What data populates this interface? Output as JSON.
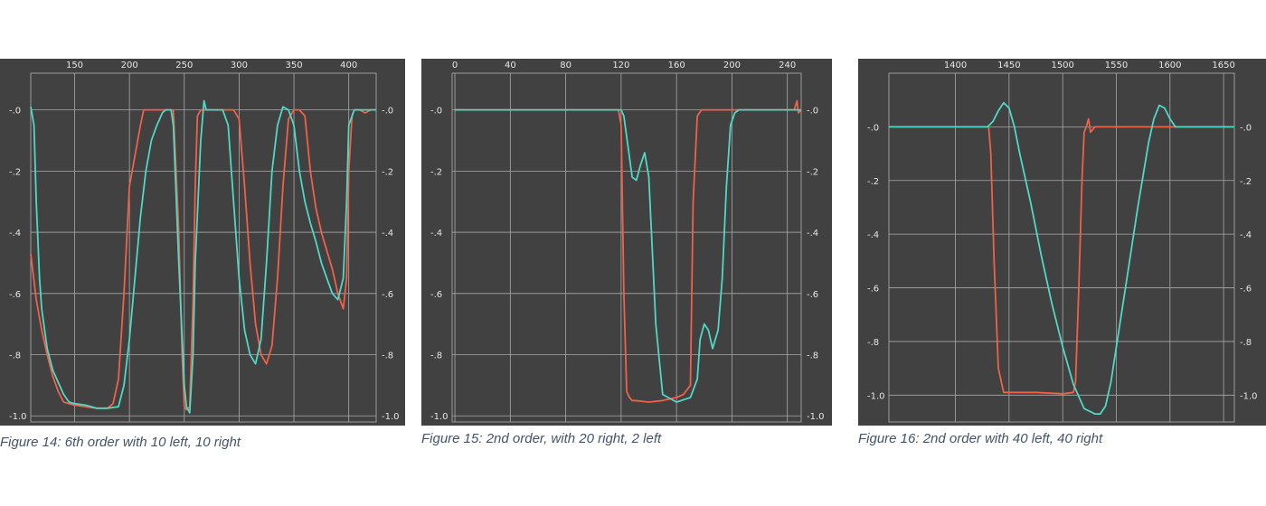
{
  "colors": {
    "background": "#414141",
    "grid": "#a9a9a9",
    "series_red": "#f0604a",
    "series_cyan": "#4fd8c4",
    "caption": "#44546a"
  },
  "figures": [
    {
      "caption": "Figure 14: 6th order with 10 left, 10 right"
    },
    {
      "caption": "Figure 15: 2nd order, with 20 right, 2 left"
    },
    {
      "caption": "Figure 16: 2nd order with 40 left, 40 right"
    }
  ],
  "chart_data": [
    {
      "type": "line",
      "title": "",
      "xlabel": "",
      "ylabel": "",
      "xlim": [
        110,
        425
      ],
      "ylim": [
        -1.02,
        0.12
      ],
      "x_ticks": [
        150,
        200,
        250,
        300,
        350,
        400
      ],
      "x_tick_labels": [
        "150",
        "200",
        "250",
        "300",
        "350",
        "400"
      ],
      "y_ticks": [
        0,
        -0.2,
        -0.4,
        -0.6,
        -0.8,
        -1.0
      ],
      "y_tick_labels": [
        "-.0",
        "-.2",
        "-.4",
        "-.6",
        "-.8",
        "-1.0"
      ],
      "grid": true,
      "series": [
        {
          "color": "#f0604a",
          "x": [
            110,
            115,
            120,
            125,
            130,
            135,
            140,
            145,
            150,
            160,
            170,
            180,
            185,
            190,
            195,
            200,
            205,
            210,
            213,
            215,
            220,
            230,
            240,
            245,
            248,
            250,
            252,
            255,
            258,
            260,
            262,
            265,
            270,
            280,
            290,
            295,
            300,
            305,
            310,
            315,
            320,
            325,
            330,
            335,
            340,
            345,
            350,
            355,
            360,
            365,
            370,
            375,
            380,
            385,
            390,
            395,
            398,
            400,
            403,
            405,
            410,
            415,
            420,
            425
          ],
          "y": [
            -0.47,
            -0.62,
            -0.72,
            -0.8,
            -0.87,
            -0.92,
            -0.955,
            -0.96,
            -0.965,
            -0.97,
            -0.975,
            -0.975,
            -0.96,
            -0.88,
            -0.6,
            -0.25,
            -0.15,
            -0.05,
            0.0,
            0.0,
            0.0,
            0.0,
            0.0,
            -0.4,
            -0.8,
            -0.97,
            -0.98,
            -0.97,
            -0.62,
            -0.25,
            -0.02,
            0.0,
            0.0,
            0.0,
            0.0,
            0.0,
            -0.03,
            -0.25,
            -0.5,
            -0.7,
            -0.8,
            -0.83,
            -0.77,
            -0.55,
            -0.25,
            -0.03,
            0.0,
            0.0,
            -0.02,
            -0.2,
            -0.32,
            -0.4,
            -0.46,
            -0.52,
            -0.6,
            -0.65,
            -0.55,
            -0.2,
            -0.02,
            0.0,
            0.0,
            -0.01,
            0.0,
            0.0
          ]
        },
        {
          "color": "#4fd8c4",
          "x": [
            110,
            113,
            115,
            118,
            120,
            125,
            130,
            135,
            140,
            145,
            150,
            160,
            170,
            180,
            190,
            195,
            200,
            205,
            210,
            215,
            220,
            225,
            230,
            233,
            235,
            238,
            240,
            245,
            250,
            252,
            255,
            258,
            260,
            265,
            268,
            270,
            275,
            280,
            285,
            290,
            295,
            300,
            305,
            310,
            315,
            320,
            325,
            330,
            335,
            340,
            345,
            350,
            355,
            360,
            365,
            370,
            375,
            380,
            385,
            390,
            395,
            398,
            400,
            405,
            410,
            415,
            420,
            425
          ],
          "y": [
            0.01,
            -0.05,
            -0.3,
            -0.55,
            -0.65,
            -0.78,
            -0.85,
            -0.89,
            -0.93,
            -0.955,
            -0.96,
            -0.965,
            -0.975,
            -0.975,
            -0.97,
            -0.9,
            -0.75,
            -0.55,
            -0.35,
            -0.2,
            -0.1,
            -0.05,
            -0.01,
            0.0,
            0.0,
            0.0,
            -0.05,
            -0.5,
            -0.9,
            -0.97,
            -0.99,
            -0.8,
            -0.5,
            -0.1,
            0.03,
            0.0,
            0.0,
            0.0,
            0.0,
            -0.05,
            -0.3,
            -0.55,
            -0.72,
            -0.8,
            -0.83,
            -0.75,
            -0.5,
            -0.2,
            -0.05,
            0.01,
            0.0,
            -0.05,
            -0.2,
            -0.3,
            -0.37,
            -0.43,
            -0.5,
            -0.55,
            -0.6,
            -0.62,
            -0.55,
            -0.3,
            -0.05,
            0.0,
            0.0,
            0.0,
            0.0,
            0.0
          ]
        }
      ]
    },
    {
      "type": "line",
      "title": "",
      "xlabel": "",
      "ylabel": "",
      "xlim": [
        -2,
        250
      ],
      "ylim": [
        -1.02,
        0.12
      ],
      "x_ticks": [
        0,
        40,
        80,
        120,
        160,
        200,
        240
      ],
      "x_tick_labels": [
        "0",
        "40",
        "80",
        "120",
        "160",
        "200",
        "240"
      ],
      "y_ticks": [
        0,
        -0.2,
        -0.4,
        -0.6,
        -0.8,
        -1.0
      ],
      "y_tick_labels": [
        "-.0",
        "-.2",
        "-.4",
        "-.6",
        "-.8",
        "-1.0"
      ],
      "grid": true,
      "series": [
        {
          "color": "#f0604a",
          "x": [
            0,
            20,
            40,
            60,
            80,
            100,
            118,
            120,
            122,
            124,
            126,
            128,
            130,
            140,
            150,
            160,
            165,
            170,
            172,
            175,
            178,
            180,
            200,
            220,
            240,
            245,
            247,
            248,
            250
          ],
          "y": [
            0.0,
            0.0,
            0.0,
            0.0,
            0.0,
            0.0,
            0.0,
            -0.05,
            -0.6,
            -0.92,
            -0.94,
            -0.95,
            -0.95,
            -0.955,
            -0.95,
            -0.94,
            -0.93,
            -0.9,
            -0.3,
            -0.02,
            0.0,
            0.0,
            0.0,
            0.0,
            0.0,
            0.0,
            0.03,
            -0.01,
            0.0
          ]
        },
        {
          "color": "#4fd8c4",
          "x": [
            0,
            20,
            40,
            60,
            80,
            100,
            120,
            122,
            125,
            128,
            131,
            134,
            137,
            140,
            145,
            150,
            160,
            170,
            175,
            177,
            180,
            183,
            186,
            190,
            193,
            196,
            199,
            202,
            205,
            210,
            240,
            250
          ],
          "y": [
            0.0,
            0.0,
            0.0,
            0.0,
            0.0,
            0.0,
            0.0,
            -0.02,
            -0.12,
            -0.22,
            -0.23,
            -0.18,
            -0.14,
            -0.22,
            -0.7,
            -0.93,
            -0.955,
            -0.94,
            -0.88,
            -0.75,
            -0.7,
            -0.72,
            -0.78,
            -0.72,
            -0.55,
            -0.25,
            -0.05,
            -0.01,
            0.0,
            0.0,
            0.0,
            0.0
          ]
        }
      ]
    },
    {
      "type": "line",
      "title": "",
      "xlabel": "",
      "ylabel": "",
      "xlim": [
        1338,
        1660
      ],
      "ylim": [
        -1.1,
        0.2
      ],
      "x_ticks": [
        1400,
        1450,
        1500,
        1550,
        1600,
        1650
      ],
      "x_tick_labels": [
        "1400",
        "1450",
        "1500",
        "1550",
        "1600",
        "1650"
      ],
      "y_ticks": [
        0,
        -0.2,
        -0.4,
        -0.6,
        -0.8,
        -1.0
      ],
      "y_tick_labels": [
        "-.0",
        "-.2",
        "-.4",
        "-.6",
        "-.8",
        "-1.0"
      ],
      "grid": true,
      "series": [
        {
          "color": "#f0604a",
          "x": [
            1338,
            1380,
            1410,
            1431,
            1433,
            1436,
            1440,
            1445,
            1450,
            1475,
            1500,
            1510,
            1512,
            1515,
            1518,
            1520,
            1522,
            1524,
            1526,
            1530,
            1560,
            1600,
            1660
          ],
          "y": [
            0.0,
            0.0,
            0.0,
            0.0,
            -0.1,
            -0.5,
            -0.9,
            -0.99,
            -0.99,
            -0.99,
            -0.995,
            -0.99,
            -0.95,
            -0.6,
            -0.2,
            -0.02,
            0.0,
            0.03,
            -0.02,
            0.0,
            0.0,
            0.0,
            0.0
          ]
        },
        {
          "color": "#4fd8c4",
          "x": [
            1338,
            1380,
            1420,
            1430,
            1435,
            1440,
            1445,
            1450,
            1455,
            1460,
            1470,
            1480,
            1490,
            1500,
            1510,
            1520,
            1530,
            1535,
            1540,
            1545,
            1550,
            1560,
            1570,
            1580,
            1585,
            1590,
            1595,
            1600,
            1605,
            1610,
            1620,
            1660
          ],
          "y": [
            0.0,
            0.0,
            0.0,
            0.0,
            0.02,
            0.06,
            0.09,
            0.07,
            0.0,
            -0.1,
            -0.28,
            -0.48,
            -0.66,
            -0.82,
            -0.96,
            -1.05,
            -1.07,
            -1.07,
            -1.04,
            -0.95,
            -0.82,
            -0.56,
            -0.3,
            -0.06,
            0.03,
            0.08,
            0.07,
            0.03,
            0.0,
            0.0,
            0.0,
            0.0
          ]
        }
      ]
    }
  ]
}
